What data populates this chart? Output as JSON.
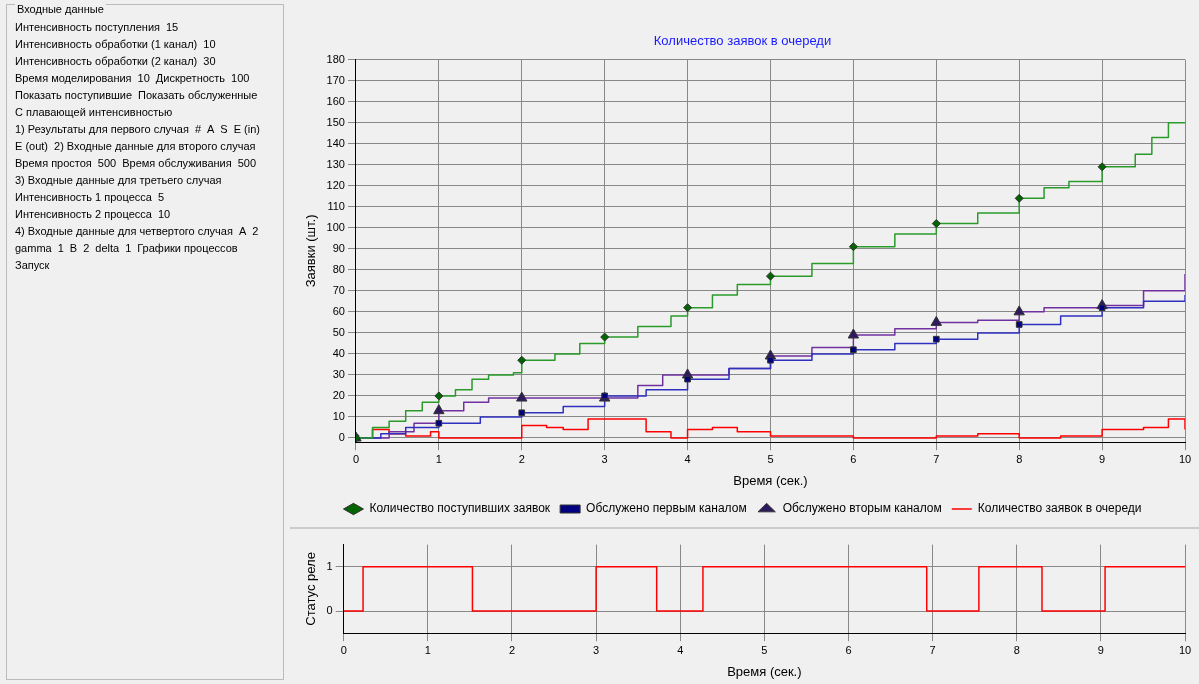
{
  "chart_data": [
    {
      "type": "other",
      "title": "Входные данные",
      "annotations": [
        "Интенсивность поступления",
        "15",
        "Интенсивность обработки (1 канал)",
        "10",
        "Интенсивность обработки (2 канал)",
        "30",
        "Время моделирования",
        "10",
        "Дискретность",
        "100",
        "Показать поступившие",
        "Показать обслуженные",
        "С плавающей интенсивностью",
        "1) Результаты для первого случая",
        "#",
        "A",
        "S",
        "E (in)",
        "E (out)",
        "2) Входные данные для второго случая",
        "Время простоя",
        "500",
        "Время обслуживания",
        "500",
        "3) Входные данные для третьего случая",
        "Интенсивность 1 процесса",
        "5",
        "Интенсивность 2 процесса",
        "10",
        "4) Входные данные для четвертого случая",
        "A",
        "2",
        "gamma",
        "1",
        "B",
        "2",
        "delta",
        "1",
        "Графики процессов",
        "Запуск"
      ]
    },
    {
      "type": "line",
      "title": "Количество заявок в очереди",
      "xlabel": "Время (сек.)",
      "ylabel": "Заявки (шт.)",
      "xlim": [
        0,
        10
      ],
      "xticks": [
        0,
        1,
        2,
        3,
        4,
        5,
        6,
        7,
        8,
        9,
        10
      ],
      "ylim": [
        -2,
        180
      ],
      "yticks": [
        0,
        10,
        20,
        30,
        40,
        50,
        60,
        70,
        80,
        90,
        100,
        110,
        120,
        130,
        140,
        150,
        160,
        170,
        180
      ],
      "grid": true,
      "legend": "bottom",
      "series": [
        {
          "type": "step",
          "color": "#2a9a2a",
          "x": [
            0,
            0.2,
            0.4,
            0.6,
            0.8,
            1,
            1.2,
            1.4,
            1.6,
            1.9,
            2,
            2.4,
            2.7,
            3,
            3.4,
            3.8,
            4,
            4.3,
            4.6,
            5,
            5.5,
            6,
            6.5,
            7,
            7.5,
            8,
            8.3,
            8.6,
            9,
            9.4,
            9.6,
            9.8,
            10
          ],
          "values": [
            0,
            5,
            8,
            13,
            17,
            20,
            23,
            28,
            30,
            31,
            37,
            40,
            45,
            48,
            53,
            58,
            62,
            68,
            73,
            77,
            83,
            91,
            97,
            102,
            107,
            114,
            119,
            122,
            129,
            135,
            143,
            150,
            150
          ]
        },
        {
          "type": "step",
          "color": "#3030c0",
          "x": [
            0,
            0.3,
            0.6,
            1,
            1.5,
            2,
            2.5,
            3,
            3.5,
            4,
            4.5,
            5,
            5.5,
            6,
            6.5,
            7,
            7.5,
            8,
            8.5,
            9,
            9.5,
            10
          ],
          "values": [
            0,
            2,
            5,
            7,
            10,
            12,
            15,
            20,
            23,
            28,
            33,
            37,
            40,
            42,
            45,
            47,
            50,
            54,
            58,
            62,
            65,
            68
          ]
        },
        {
          "type": "step",
          "color": "#7030a0",
          "x": [
            0,
            0.4,
            0.7,
            1,
            1.3,
            1.6,
            2,
            3,
            3.4,
            3.7,
            4,
            4.5,
            5,
            5.5,
            6,
            6.5,
            7,
            7.5,
            8,
            8.3,
            9,
            9.5,
            10
          ],
          "values": [
            0,
            3,
            7,
            13,
            17,
            19,
            19,
            19,
            25,
            30,
            30,
            33,
            39,
            43,
            49,
            52,
            55,
            56,
            60,
            62,
            63,
            70,
            78
          ]
        },
        {
          "type": "scatter",
          "name": "Количество поступивших заявок",
          "color": "#006400",
          "marker": "diamond",
          "x": [
            0,
            1,
            2,
            3,
            4,
            5,
            6,
            7,
            8,
            9
          ],
          "values": [
            0,
            20,
            37,
            48,
            62,
            77,
            91,
            102,
            114,
            129
          ]
        },
        {
          "type": "scatter",
          "name": "Обслужено первым каналом",
          "color": "#000080",
          "marker": "square",
          "x": [
            0,
            1,
            2,
            3,
            4,
            5,
            6,
            7,
            8,
            9
          ],
          "values": [
            0,
            7,
            12,
            20,
            28,
            37,
            42,
            47,
            54,
            62
          ]
        },
        {
          "type": "scatter",
          "name": "Обслужено вторым каналом",
          "color": "#2e1a5e",
          "marker": "triangle",
          "x": [
            0,
            1,
            2,
            3,
            4,
            5,
            6,
            7,
            8,
            9
          ],
          "values": [
            0,
            13,
            19,
            19,
            30,
            39,
            49,
            55,
            60,
            63
          ]
        },
        {
          "type": "step",
          "name": "Количество заявок в очереди",
          "color": "#ff0000",
          "x": [
            0,
            0.2,
            0.4,
            0.6,
            0.9,
            1,
            1.9,
            2,
            2.3,
            2.5,
            2.8,
            3,
            3.2,
            3.5,
            3.8,
            4,
            4.3,
            4.6,
            5,
            6,
            7,
            7.5,
            8,
            8.5,
            9,
            9.5,
            9.8,
            9.9,
            10
          ],
          "values": [
            0,
            4,
            2,
            1,
            3,
            0,
            0,
            6,
            5,
            4,
            9,
            9,
            9,
            3,
            0,
            4,
            5,
            3,
            1,
            0,
            1,
            2,
            0,
            1,
            4,
            5,
            9,
            9,
            4
          ]
        }
      ]
    },
    {
      "type": "step",
      "xlabel": "Время (сек.)",
      "ylabel": "Статус реле",
      "xlim": [
        0,
        10
      ],
      "xticks": [
        0,
        1,
        2,
        3,
        4,
        5,
        6,
        7,
        8,
        9,
        10
      ],
      "ylim": [
        -0.5,
        1.5
      ],
      "yticks": [
        0,
        1
      ],
      "grid": true,
      "series": [
        {
          "color": "#ff0000",
          "x": [
            0,
            0.23,
            1.53,
            3.0,
            3.72,
            4.27,
            6.93,
            7.55,
            8.3,
            9.05,
            10
          ],
          "values": [
            0,
            1,
            0,
            1,
            0,
            1,
            0,
            1,
            0,
            1,
            1
          ]
        }
      ]
    }
  ]
}
